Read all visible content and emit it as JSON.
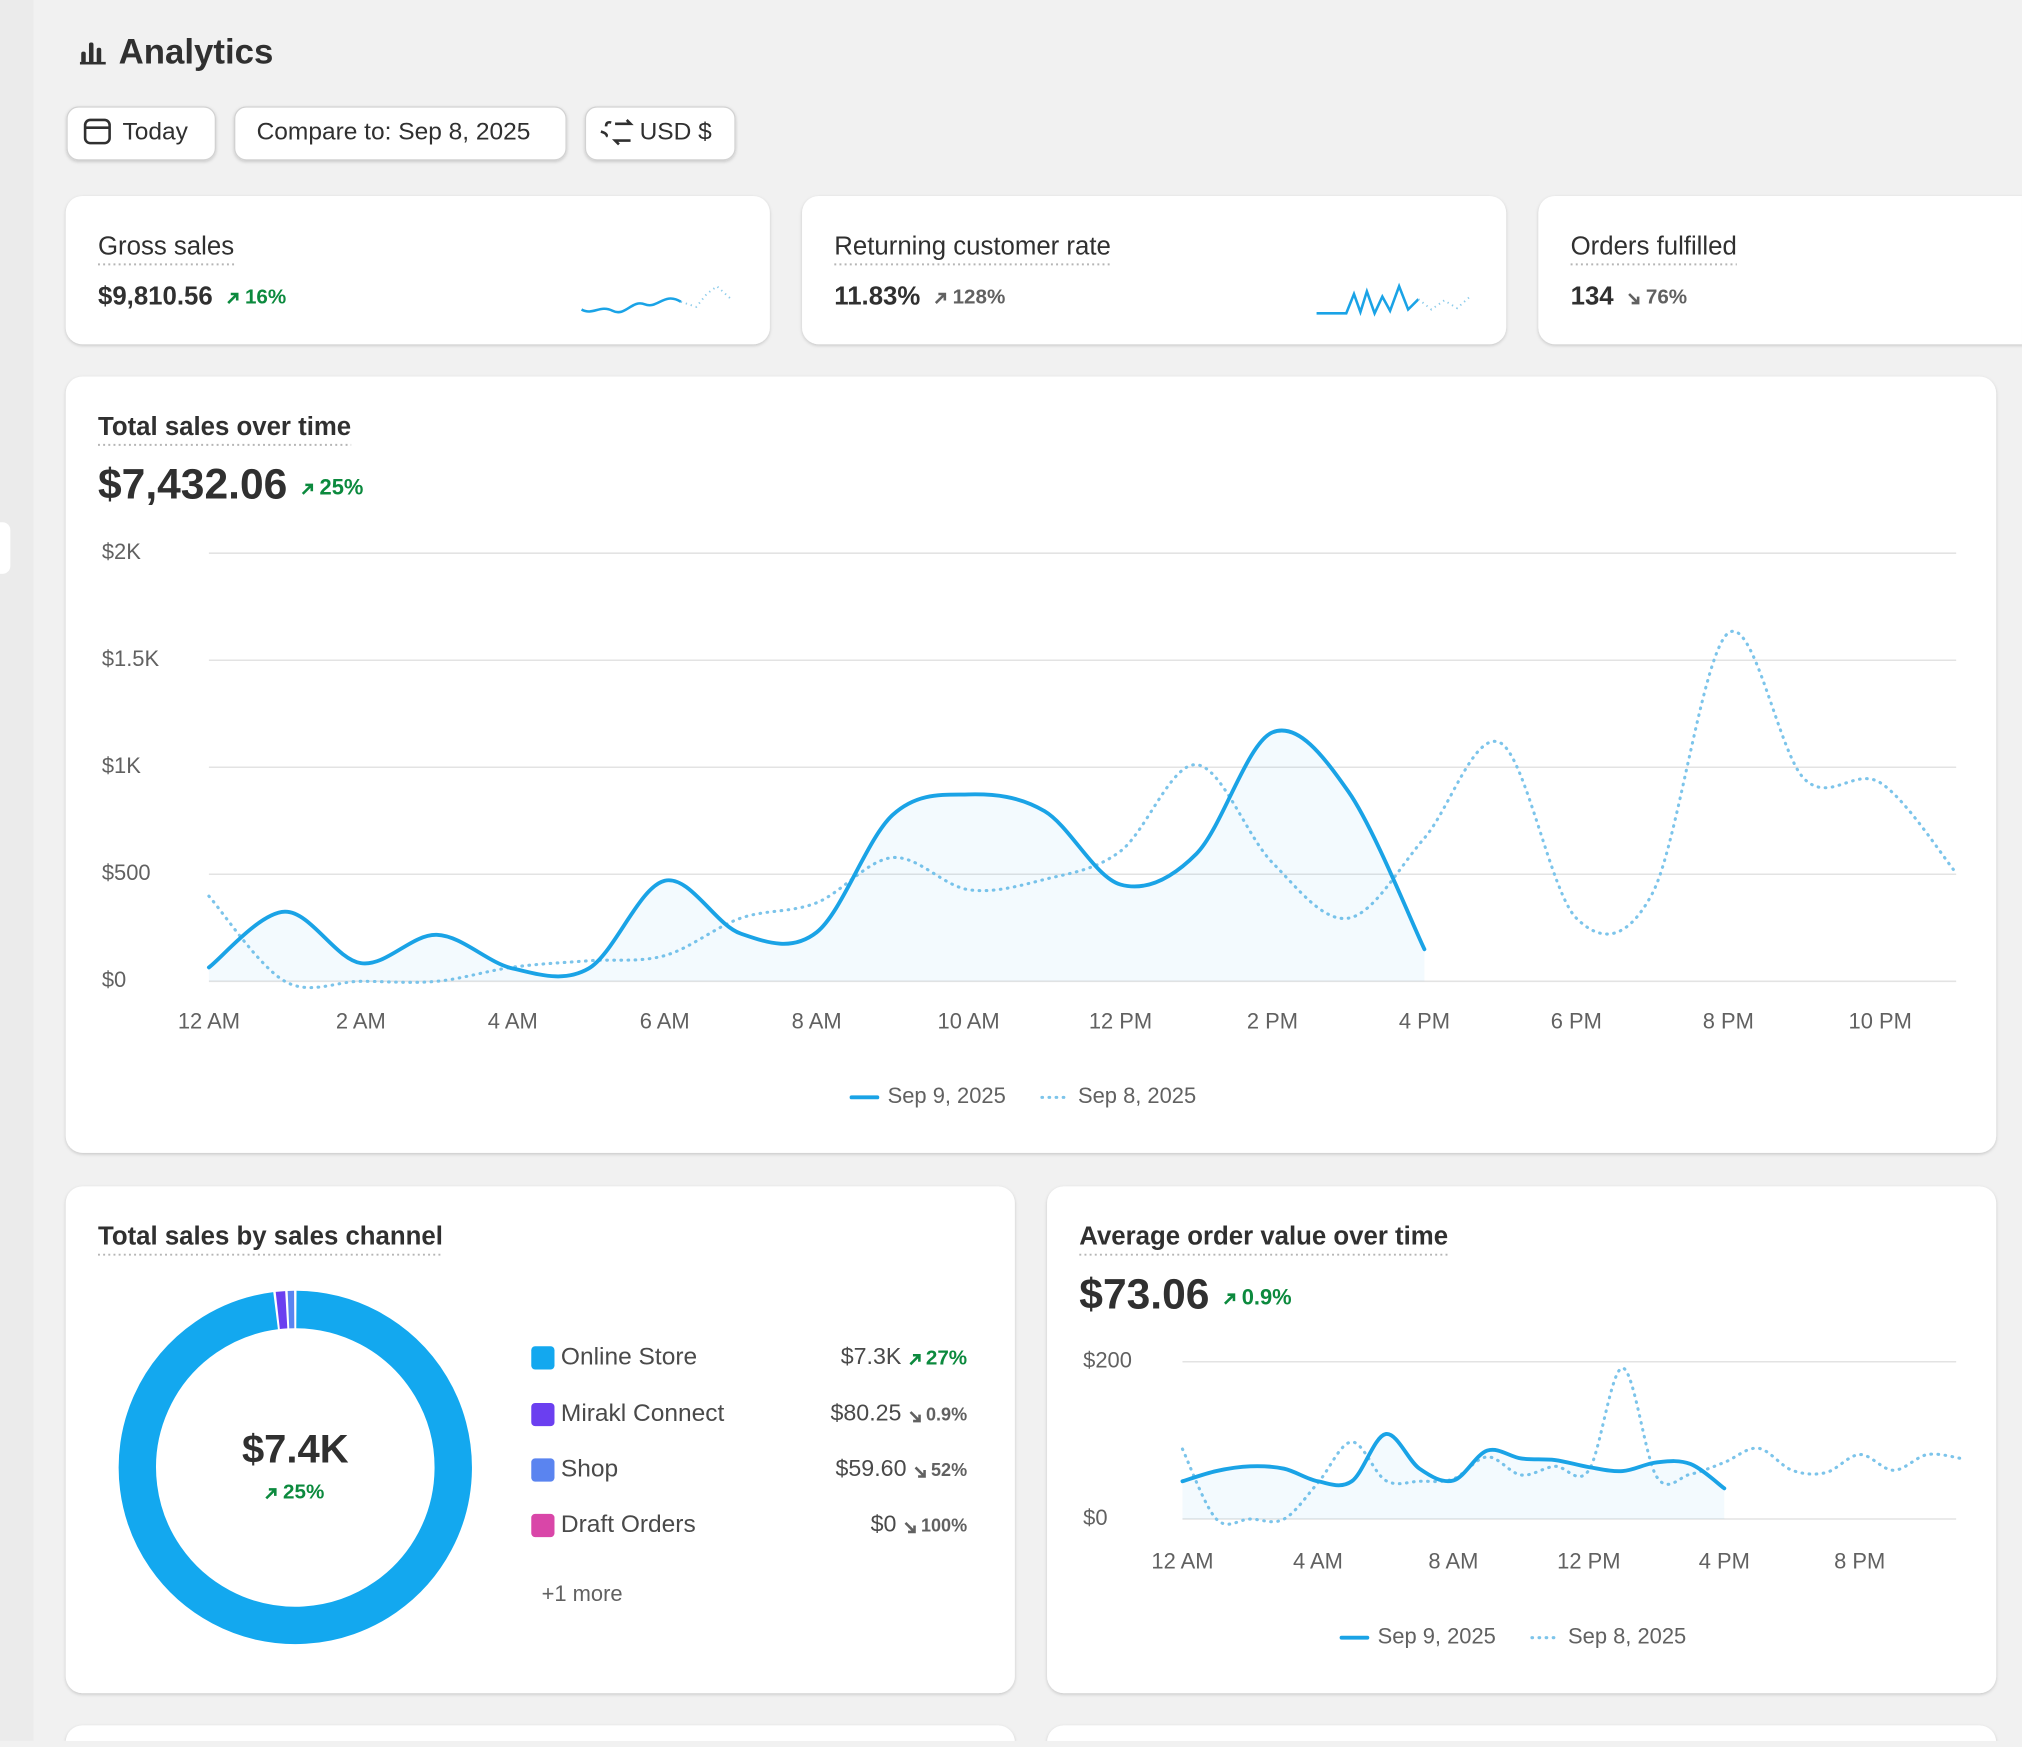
{
  "header": {
    "title": "Analytics"
  },
  "toolbar": [
    "Today",
    "Compare to: Sep 8, 2025",
    "USD $"
  ],
  "kpis": [
    {
      "label": "Gross sales",
      "value": "$9,810.56",
      "change": "16%",
      "direction": "up",
      "tone": "positive"
    },
    {
      "label": "Returning customer rate",
      "value": "11.83%",
      "change": "128%",
      "direction": "up",
      "tone": "neutral"
    },
    {
      "label": "Orders fulfilled",
      "value": "134",
      "change": "76%",
      "direction": "down",
      "tone": "neutral"
    }
  ],
  "chart_data": [
    {
      "type": "line",
      "title": "Total sales over time",
      "total": "$7,432.06",
      "change": "25%",
      "direction": "up",
      "categories": [
        "12 AM",
        null,
        "2 AM",
        null,
        "4 AM",
        null,
        "6 AM",
        null,
        "8 AM",
        null,
        "10 AM",
        null,
        "12 PM",
        null,
        "2 PM",
        null,
        "4 PM",
        null,
        "6 PM",
        null,
        "8 PM",
        null,
        "10 PM",
        null
      ],
      "series": [
        {
          "name": "Sep 9, 2025",
          "color": "#1aa3e6",
          "style": "solid",
          "values": [
            65,
            325,
            85,
            217,
            60,
            60,
            470,
            223,
            229,
            777,
            873,
            795,
            452,
            596,
            1163,
            886,
            150,
            null,
            null,
            null,
            null,
            null,
            null,
            null
          ]
        },
        {
          "name": "Sep 8, 2025",
          "color": "#7cc4ea",
          "style": "dotted",
          "values": [
            398,
            0,
            0,
            0,
            66,
            96,
            120,
            295,
            367,
            578,
            428,
            476,
            608,
            1012,
            554,
            295,
            669,
            1114,
            295,
            410,
            1627,
            946,
            928,
            506
          ]
        }
      ],
      "ylim": [
        0,
        2000
      ],
      "yticks": [
        {
          "value": 0,
          "label": "$0"
        },
        {
          "value": 500,
          "label": "$500"
        },
        {
          "value": 1000,
          "label": "$1K"
        },
        {
          "value": 1500,
          "label": "$1.5K"
        },
        {
          "value": 2000,
          "label": "$2K"
        }
      ],
      "grid": true
    },
    {
      "type": "donut",
      "title": "Total sales by sales channel",
      "center_label": "$7.4K",
      "center_change": "25%",
      "center_direction": "up",
      "categories": [
        "Online Store",
        "Mirakl Connect",
        "Shop",
        "Draft Orders"
      ],
      "values": [
        7300,
        80.25,
        59.6,
        0
      ],
      "value_labels": [
        "$7.3K",
        "$80.25",
        "$59.60",
        "$0"
      ],
      "changes": [
        "27%",
        "0.9%",
        "52%",
        "100%"
      ],
      "directions": [
        "up",
        "down",
        "down",
        "down"
      ],
      "tones": [
        "positive",
        "neutral",
        "neutral",
        "neutral"
      ],
      "colors": [
        "#13a8ef",
        "#6b3ff0",
        "#5a84f0",
        "#d946a8"
      ],
      "more": "+1 more"
    },
    {
      "type": "line",
      "title": "Average order value over time",
      "total": "$73.06",
      "change": "0.9%",
      "direction": "up",
      "categories": [
        "12 AM",
        null,
        null,
        null,
        "4 AM",
        null,
        null,
        null,
        "8 AM",
        null,
        null,
        null,
        "12 PM",
        null,
        null,
        null,
        "4 PM",
        null,
        null,
        null,
        "8 PM",
        null,
        null,
        null
      ],
      "series": [
        {
          "name": "Sep 9, 2025",
          "color": "#1aa3e6",
          "style": "solid",
          "values": [
            48,
            61,
            67,
            64,
            48,
            48,
            108,
            64,
            49,
            87,
            77,
            75,
            66,
            61,
            72,
            70,
            39,
            null,
            null,
            null,
            null,
            null,
            null,
            null
          ]
        },
        {
          "name": "Sep 8, 2025",
          "color": "#7cc4ea",
          "style": "dotted",
          "values": [
            89,
            0,
            0,
            0,
            46,
            98,
            49,
            48,
            51,
            79,
            56,
            67,
            62,
            192,
            54,
            57,
            72,
            90,
            62,
            59,
            82,
            62,
            82,
            77
          ]
        }
      ],
      "ylim": [
        0,
        200
      ],
      "yticks": [
        {
          "value": 0,
          "label": "$0"
        },
        {
          "value": 200,
          "label": "$200"
        }
      ],
      "grid": true
    }
  ]
}
